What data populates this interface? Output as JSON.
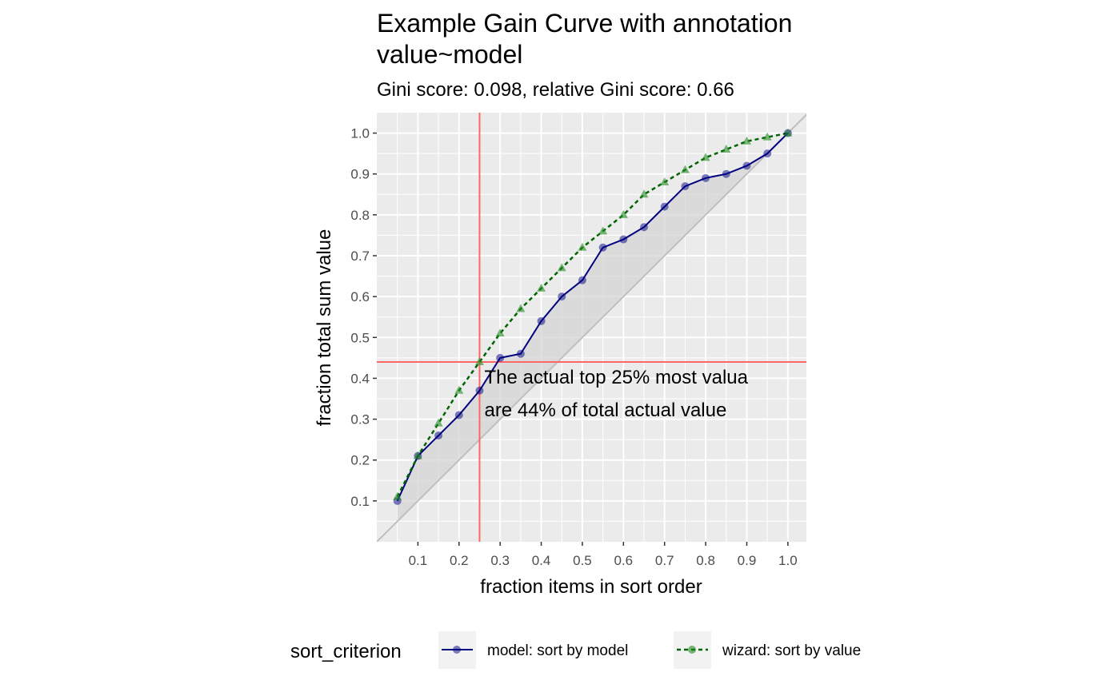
{
  "chart_data": {
    "type": "line",
    "title": "Example Gain Curve with annotation",
    "title_line2": "value~model",
    "subtitle": "Gini score: 0.098, relative Gini score: 0.66",
    "xlabel": "fraction items in sort order",
    "ylabel": "fraction total sum value",
    "xlim": [
      0.0,
      1.045
    ],
    "ylim": [
      0.0,
      1.05
    ],
    "x_ticks": [
      "0.1",
      "0.2",
      "0.3",
      "0.4",
      "0.5",
      "0.6",
      "0.7",
      "0.8",
      "0.9",
      "1.0"
    ],
    "y_ticks": [
      "0.1",
      "0.2",
      "0.3",
      "0.4",
      "0.5",
      "0.6",
      "0.7",
      "0.8",
      "0.9",
      "1.0"
    ],
    "grid": true,
    "legend": {
      "position": "bottom",
      "title": "sort_criterion"
    },
    "x": [
      0.05,
      0.1,
      0.15,
      0.2,
      0.25,
      0.3,
      0.35,
      0.4,
      0.45,
      0.5,
      0.55,
      0.6,
      0.65,
      0.7,
      0.75,
      0.8,
      0.85,
      0.9,
      0.95,
      1.0
    ],
    "series": [
      {
        "name": "model: sort by model",
        "color": "#000080",
        "line_style": "solid",
        "marker": "circle",
        "values": [
          0.1,
          0.21,
          0.26,
          0.31,
          0.37,
          0.45,
          0.46,
          0.54,
          0.6,
          0.64,
          0.72,
          0.74,
          0.77,
          0.82,
          0.87,
          0.89,
          0.9,
          0.92,
          0.95,
          1.0
        ]
      },
      {
        "name": "wizard: sort by value",
        "color": "#006400",
        "line_style": "dashed",
        "marker": "triangle",
        "values": [
          0.11,
          0.21,
          0.29,
          0.37,
          0.44,
          0.51,
          0.57,
          0.62,
          0.67,
          0.72,
          0.76,
          0.8,
          0.85,
          0.88,
          0.91,
          0.94,
          0.96,
          0.98,
          0.99,
          1.0
        ]
      }
    ],
    "diagonal_color": "#bfbfbf",
    "shaded_region": "between diagonal and model curve",
    "annotation": {
      "vline_x": 0.25,
      "hline_y": 0.44,
      "line_color": "#ff6666",
      "text_line1": "The actual top 25% most valua",
      "text_line2": "are 44% of total actual value"
    }
  },
  "colors": {
    "panel_background": "#ebebeb",
    "grid": "#ffffff",
    "shade": "#d3d3d3"
  }
}
